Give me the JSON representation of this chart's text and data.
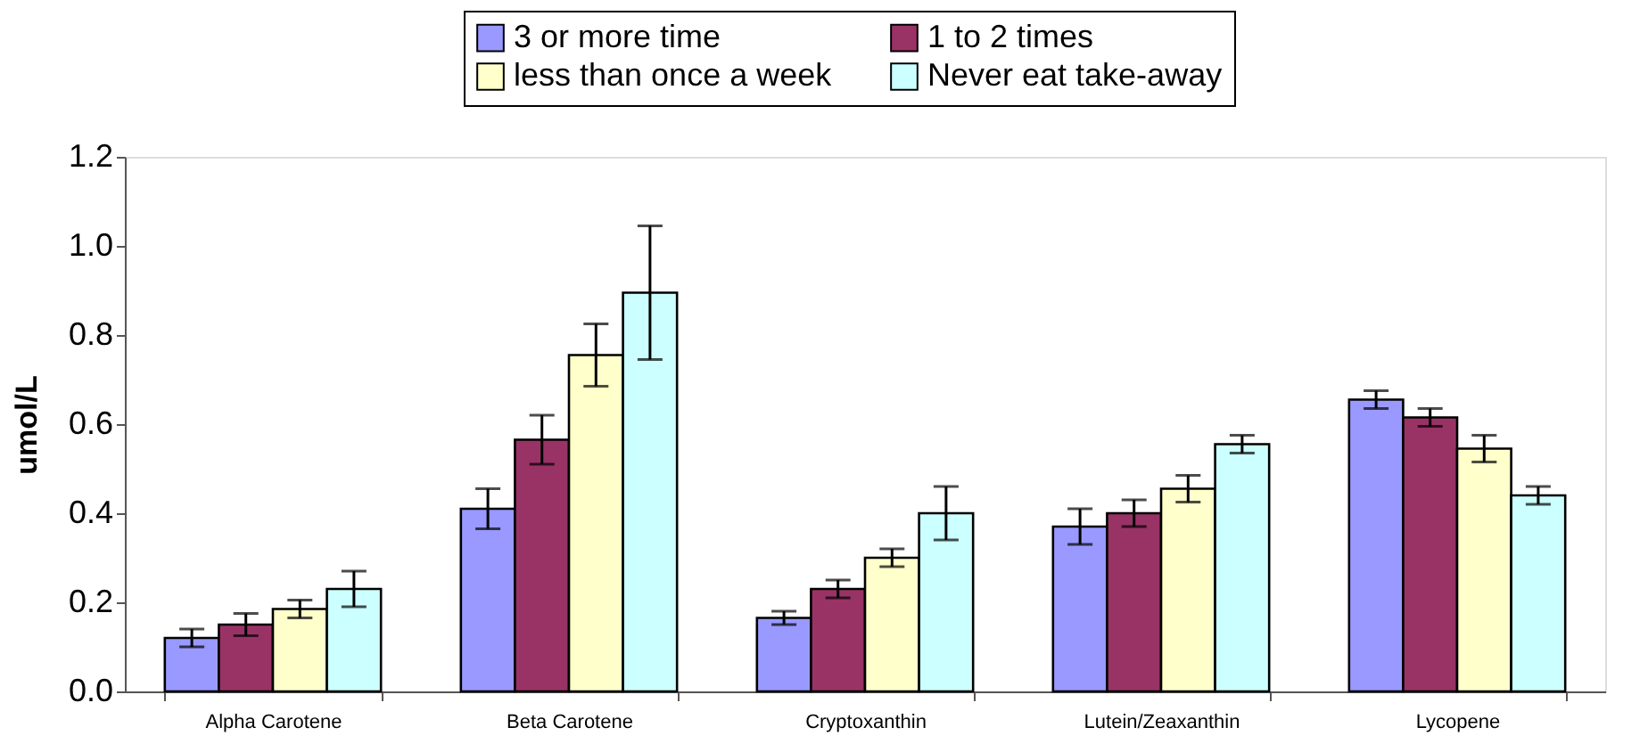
{
  "chart_data": {
    "type": "bar",
    "ylabel": "umol/L",
    "categories": [
      "Alpha Carotene",
      "Beta Carotene",
      "Cryptoxanthin",
      "Lutein/Zeaxanthin",
      "Lycopene"
    ],
    "series": [
      {
        "name": "3 or more time",
        "color": "#9999ff",
        "values": [
          0.12,
          0.41,
          0.165,
          0.37,
          0.655
        ],
        "errors": [
          0.02,
          0.045,
          0.015,
          0.04,
          0.02
        ]
      },
      {
        "name": "1 to 2 times",
        "color": "#993366",
        "values": [
          0.15,
          0.565,
          0.23,
          0.4,
          0.615
        ],
        "errors": [
          0.025,
          0.055,
          0.02,
          0.03,
          0.02
        ]
      },
      {
        "name": "less than once a week",
        "color": "#ffffcc",
        "values": [
          0.185,
          0.755,
          0.3,
          0.455,
          0.545
        ],
        "errors": [
          0.02,
          0.07,
          0.02,
          0.03,
          0.03
        ]
      },
      {
        "name": "Never eat take-away",
        "color": "#ccffff",
        "values": [
          0.23,
          0.895,
          0.4,
          0.555,
          0.44
        ],
        "errors": [
          0.04,
          0.15,
          0.06,
          0.02,
          0.02
        ]
      }
    ],
    "ylim": [
      0,
      1.2
    ],
    "yticks": [
      {
        "value": 0,
        "label": "0.0"
      },
      0.2,
      0.4,
      0.6,
      0.8,
      {
        "value": 1,
        "label": "1.0"
      },
      1.2
    ],
    "grid": false,
    "legend": "top"
  }
}
